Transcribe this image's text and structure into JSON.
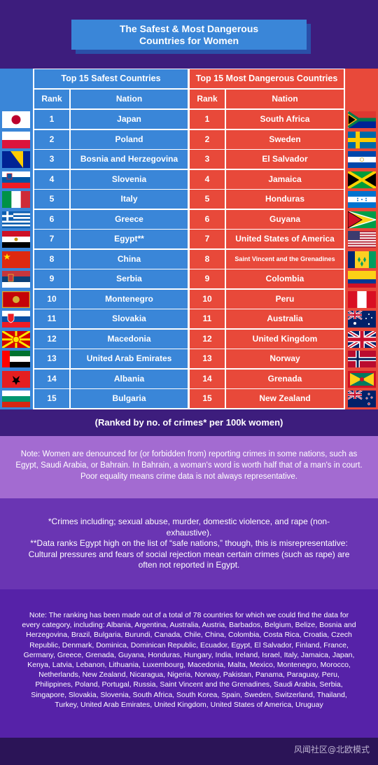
{
  "title": "The Safest & Most Dangerous\nCountries for Women",
  "safe_header": "Top 15 Safest Countries",
  "danger_header": "Top 15 Most Dangerous Countries",
  "col_rank": "Rank",
  "col_nation": "Nation",
  "safe": [
    {
      "rank": "1",
      "nation": "Japan",
      "flag": "japan"
    },
    {
      "rank": "2",
      "nation": "Poland",
      "flag": "poland"
    },
    {
      "rank": "3",
      "nation": "Bosnia and Herzegovina",
      "flag": "bosnia"
    },
    {
      "rank": "4",
      "nation": "Slovenia",
      "flag": "slovenia"
    },
    {
      "rank": "5",
      "nation": "Italy",
      "flag": "italy"
    },
    {
      "rank": "6",
      "nation": "Greece",
      "flag": "greece"
    },
    {
      "rank": "7",
      "nation": "Egypt**",
      "flag": "egypt"
    },
    {
      "rank": "8",
      "nation": "China",
      "flag": "china"
    },
    {
      "rank": "9",
      "nation": "Serbia",
      "flag": "serbia"
    },
    {
      "rank": "10",
      "nation": "Montenegro",
      "flag": "montenegro"
    },
    {
      "rank": "11",
      "nation": "Slovakia",
      "flag": "slovakia"
    },
    {
      "rank": "12",
      "nation": "Macedonia",
      "flag": "macedonia"
    },
    {
      "rank": "13",
      "nation": "United Arab Emirates",
      "flag": "uae"
    },
    {
      "rank": "14",
      "nation": "Albania",
      "flag": "albania"
    },
    {
      "rank": "15",
      "nation": "Bulgaria",
      "flag": "bulgaria"
    }
  ],
  "danger": [
    {
      "rank": "1",
      "nation": "South Africa",
      "flag": "south-africa"
    },
    {
      "rank": "2",
      "nation": "Sweden",
      "flag": "sweden"
    },
    {
      "rank": "3",
      "nation": "El Salvador",
      "flag": "el-salvador"
    },
    {
      "rank": "4",
      "nation": "Jamaica",
      "flag": "jamaica"
    },
    {
      "rank": "5",
      "nation": "Honduras",
      "flag": "honduras"
    },
    {
      "rank": "6",
      "nation": "Guyana",
      "flag": "guyana"
    },
    {
      "rank": "7",
      "nation": "United States of America",
      "flag": "usa"
    },
    {
      "rank": "8",
      "nation": "Saint Vincent and the Grenadines",
      "flag": "saint-vincent"
    },
    {
      "rank": "9",
      "nation": "Colombia",
      "flag": "colombia"
    },
    {
      "rank": "10",
      "nation": "Peru",
      "flag": "peru"
    },
    {
      "rank": "11",
      "nation": "Australia",
      "flag": "australia"
    },
    {
      "rank": "12",
      "nation": "United Kingdom",
      "flag": "uk"
    },
    {
      "rank": "13",
      "nation": "Norway",
      "flag": "norway"
    },
    {
      "rank": "14",
      "nation": "Grenada",
      "flag": "grenada"
    },
    {
      "rank": "15",
      "nation": "New Zealand",
      "flag": "new-zealand"
    }
  ],
  "ranked_by": "(Ranked by no. of crimes* per 100k women)",
  "note1": "Note: Women are denounced for (or forbidden from) reporting crimes in some nations, such as Egypt, Saudi Arabia, or Bahrain. In Bahrain, a woman's word is worth half that of a man's in court. Poor equality means crime data is not always representative.",
  "note2a": "*Crimes including; sexual abuse, murder, domestic violence, and rape (non-exhaustive).",
  "note2b": "**Data ranks Egypt high on the list of “safe nations,” though, this is misrepresentative: Cultural pressures and fears of social rejection mean certain crimes (such as rape) are often not reported in Egypt.",
  "note3": "Note: The ranking has been made out of a total of 78 countries for which we could find the data for every category, including: Albania, Argentina, Australia, Austria, Barbados, Belgium, Belize, Bosnia and Herzegovina, Brazil, Bulgaria, Burundi, Canada, Chile, China, Colombia, Costa Rica, Croatia, Czech Republic, Denmark, Dominica, Dominican Republic, Ecuador, Egypt, El Salvador, Finland, France, Germany, Greece, Grenada, Guyana, Honduras, Hungary, India, Ireland, Israel, Italy, Jamaica, Japan, Kenya, Latvia, Lebanon, Lithuania, Luxembourg, Macedonia, Malta, Mexico, Montenegro, Morocco, Netherlands, New Zealand, Nicaragua, Nigeria, Norway, Pakistan, Panama, Paraguay, Peru, Philippines, Poland, Portugal, Russia, Saint Vincent and the Grenadines, Saudi Arabia, Serbia, Singapore, Slovakia, Slovenia, South Africa, South Korea, Spain, Sweden, Switzerland, Thailand, Turkey, United Arab Emirates, United Kingdom, United States of America, Uruguay",
  "watermark": "风闻社区@北欧模式",
  "colors": {
    "safe": "#3a86d8",
    "danger": "#e8493a",
    "header_bg": "#3d1d7d"
  }
}
